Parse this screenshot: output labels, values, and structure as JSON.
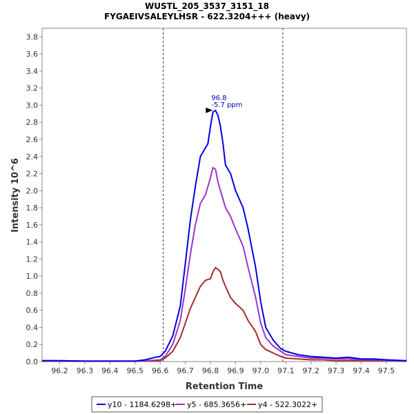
{
  "chart_data": {
    "type": "line",
    "title": "WUSTL_205_3537_3151_18",
    "subtitle": "FYGAEIVSALEYLHSR - 622.3204+++ (heavy)",
    "xlabel": "Retention Time",
    "ylabel": "Intensity 10^6",
    "xlim": [
      96.13,
      97.58
    ],
    "ylim": [
      0,
      3.9
    ],
    "x_ticks": [
      "96.2",
      "96.3",
      "96.4",
      "96.5",
      "96.6",
      "96.7",
      "96.8",
      "96.9",
      "97.0",
      "97.1",
      "97.2",
      "97.3",
      "97.4",
      "97.5"
    ],
    "y_ticks": [
      "0.0",
      "0.2",
      "0.4",
      "0.6",
      "0.8",
      "1.0",
      "1.2",
      "1.4",
      "1.6",
      "1.8",
      "2.0",
      "2.2",
      "2.4",
      "2.6",
      "2.8",
      "3.0",
      "3.2",
      "3.4",
      "3.6",
      "3.8"
    ],
    "boundaries": [
      96.612,
      97.088
    ],
    "annotation": {
      "x": 96.82,
      "y": 2.94,
      "line1": "96.8",
      "line2": "-5.7 ppm"
    },
    "legend_position": "bottom",
    "series": [
      {
        "name": "y10 - 1184.6298+",
        "color": "#0000e0",
        "x": [
          96.13,
          96.2,
          96.3,
          96.4,
          96.5,
          96.54,
          96.58,
          96.6,
          96.62,
          96.65,
          96.68,
          96.7,
          96.72,
          96.74,
          96.76,
          96.78,
          96.79,
          96.8,
          96.81,
          96.82,
          96.83,
          96.84,
          96.85,
          96.86,
          96.88,
          96.9,
          96.93,
          96.95,
          96.98,
          97.0,
          97.02,
          97.05,
          97.08,
          97.1,
          97.15,
          97.2,
          97.25,
          97.3,
          97.35,
          97.4,
          97.45,
          97.5,
          97.58
        ],
        "y": [
          0.01,
          0.01,
          0.005,
          0.005,
          0.005,
          0.02,
          0.05,
          0.06,
          0.12,
          0.3,
          0.65,
          1.15,
          1.65,
          2.05,
          2.4,
          2.5,
          2.55,
          2.75,
          2.92,
          2.94,
          2.88,
          2.75,
          2.55,
          2.3,
          2.2,
          2.0,
          1.8,
          1.55,
          1.1,
          0.7,
          0.4,
          0.25,
          0.15,
          0.12,
          0.08,
          0.06,
          0.05,
          0.04,
          0.05,
          0.03,
          0.03,
          0.02,
          0.01
        ]
      },
      {
        "name": "y5 - 685.3656+",
        "color": "#9933cc",
        "x": [
          96.13,
          96.2,
          96.3,
          96.4,
          96.5,
          96.55,
          96.6,
          96.62,
          96.65,
          96.68,
          96.7,
          96.72,
          96.74,
          96.76,
          96.78,
          96.8,
          96.81,
          96.82,
          96.83,
          96.84,
          96.85,
          96.86,
          96.88,
          96.9,
          96.93,
          96.95,
          96.98,
          97.0,
          97.02,
          97.05,
          97.08,
          97.1,
          97.15,
          97.2,
          97.25,
          97.3,
          97.35,
          97.4,
          97.45,
          97.5,
          97.58
        ],
        "y": [
          0.01,
          0.01,
          0.005,
          0.005,
          0.005,
          0.01,
          0.02,
          0.06,
          0.2,
          0.48,
          0.85,
          1.25,
          1.6,
          1.85,
          1.95,
          2.15,
          2.27,
          2.25,
          2.1,
          2.0,
          1.9,
          1.8,
          1.7,
          1.55,
          1.35,
          1.1,
          0.75,
          0.45,
          0.28,
          0.18,
          0.12,
          0.08,
          0.06,
          0.04,
          0.04,
          0.03,
          0.03,
          0.02,
          0.02,
          0.01,
          0.01
        ]
      },
      {
        "name": "y4 - 522.3022+",
        "color": "#a52a2a",
        "x": [
          96.13,
          96.2,
          96.3,
          96.4,
          96.5,
          96.55,
          96.6,
          96.62,
          96.65,
          96.68,
          96.7,
          96.72,
          96.74,
          96.76,
          96.78,
          96.8,
          96.81,
          96.82,
          96.83,
          96.84,
          96.85,
          96.86,
          96.88,
          96.9,
          96.93,
          96.95,
          96.98,
          97.0,
          97.02,
          97.05,
          97.08,
          97.1,
          97.15,
          97.2,
          97.25,
          97.3,
          97.35,
          97.4,
          97.45,
          97.5,
          97.58
        ],
        "y": [
          0.005,
          0.005,
          0.005,
          0.005,
          0.005,
          0.005,
          0.01,
          0.04,
          0.12,
          0.28,
          0.45,
          0.62,
          0.75,
          0.88,
          0.95,
          0.97,
          1.05,
          1.1,
          1.08,
          1.05,
          0.95,
          0.88,
          0.75,
          0.68,
          0.6,
          0.48,
          0.35,
          0.2,
          0.14,
          0.1,
          0.06,
          0.04,
          0.03,
          0.02,
          0.02,
          0.01,
          0.01,
          0.01,
          0.01,
          0.01,
          0.005
        ]
      }
    ]
  }
}
